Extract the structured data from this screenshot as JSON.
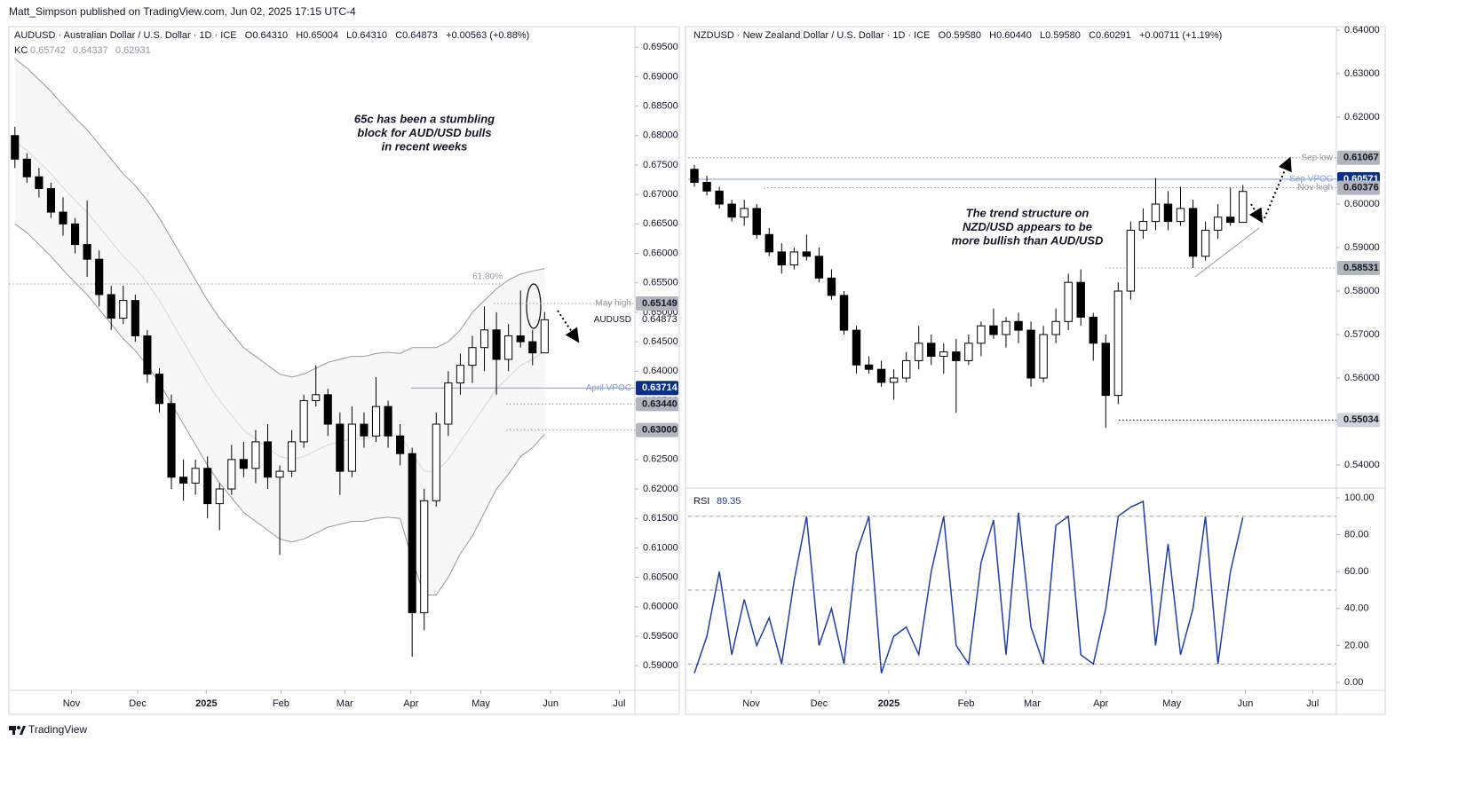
{
  "header": "Matt_Simpson published on TradingView.com, Jun 02, 2025 17:15 UTC-4",
  "footer": "TradingView",
  "chart_data": [
    {
      "type": "candlestick",
      "title": "AUDUSD · Australian Dollar / U.S. Dollar · 1D · ICE   O0.64310   H0.65004   L0.64310   C0.64873   +0.00563 (+0.88%)",
      "symbol": "AUDUSD",
      "up_color": "#ffffff",
      "down_color": "#000000",
      "wick_color": "#000000",
      "grid": false,
      "xlim": [
        -0.5,
        51.5
      ],
      "xticks": [
        {
          "value": 4.7,
          "label": "Nov"
        },
        {
          "value": 10.2,
          "label": "Dec"
        },
        {
          "value": 15.9,
          "label": "2025"
        },
        {
          "value": 22.1,
          "label": "Feb"
        },
        {
          "value": 27.4,
          "label": "Mar"
        },
        {
          "value": 32.9,
          "label": "Apr"
        },
        {
          "value": 38.7,
          "label": "May"
        },
        {
          "value": 44.5,
          "label": "Jun"
        },
        {
          "value": 50.2,
          "label": "Jul"
        }
      ],
      "ylim": [
        0.5858,
        0.6985
      ],
      "yticks": [
        {
          "value": 0.59,
          "label": "0.59000"
        },
        {
          "value": 0.595,
          "label": "0.59500"
        },
        {
          "value": 0.6,
          "label": "0.60000"
        },
        {
          "value": 0.605,
          "label": "0.60500"
        },
        {
          "value": 0.61,
          "label": "0.61000"
        },
        {
          "value": 0.615,
          "label": "0.61500"
        },
        {
          "value": 0.62,
          "label": "0.62000"
        },
        {
          "value": 0.625,
          "label": "0.62500"
        },
        {
          "value": 0.63,
          "label": "0.63000"
        },
        {
          "value": 0.635,
          "label": "0.63500"
        },
        {
          "value": 0.64,
          "label": "0.64000"
        },
        {
          "value": 0.645,
          "label": "0.64500"
        },
        {
          "value": 0.65,
          "label": "0.65000"
        },
        {
          "value": 0.655,
          "label": "0.65500"
        },
        {
          "value": 0.66,
          "label": "0.66000"
        },
        {
          "value": 0.665,
          "label": "0.66500"
        },
        {
          "value": 0.67,
          "label": "0.67000"
        },
        {
          "value": 0.675,
          "label": "0.67500"
        },
        {
          "value": 0.68,
          "label": "0.68000"
        },
        {
          "value": 0.685,
          "label": "0.68500"
        },
        {
          "value": 0.69,
          "label": "0.69000"
        },
        {
          "value": 0.695,
          "label": "0.69500"
        }
      ],
      "open": [
        0.68,
        0.676,
        0.673,
        0.671,
        0.667,
        0.665,
        0.6615,
        0.659,
        0.653,
        0.649,
        0.652,
        0.646,
        0.6395,
        0.6345,
        0.622,
        0.621,
        0.6235,
        0.6175,
        0.62,
        0.625,
        0.6235,
        0.628,
        0.622,
        0.623,
        0.628,
        0.635,
        0.636,
        0.631,
        0.623,
        0.631,
        0.629,
        0.634,
        0.629,
        0.626,
        0.599,
        0.618,
        0.631,
        0.638,
        0.641,
        0.644,
        0.647,
        0.642,
        0.646,
        0.645,
        0.6431
      ],
      "high": [
        0.6815,
        0.677,
        0.6745,
        0.672,
        0.6695,
        0.666,
        0.669,
        0.6605,
        0.6545,
        0.6545,
        0.653,
        0.647,
        0.6405,
        0.636,
        0.625,
        0.625,
        0.6255,
        0.621,
        0.6275,
        0.628,
        0.63,
        0.631,
        0.624,
        0.63,
        0.636,
        0.641,
        0.637,
        0.633,
        0.634,
        0.633,
        0.639,
        0.635,
        0.631,
        0.627,
        0.62,
        0.633,
        0.64,
        0.643,
        0.646,
        0.651,
        0.65,
        0.648,
        0.6537,
        0.647,
        0.65004
      ],
      "low": [
        0.6745,
        0.672,
        0.6695,
        0.666,
        0.663,
        0.66,
        0.656,
        0.651,
        0.647,
        0.648,
        0.645,
        0.638,
        0.633,
        0.62,
        0.618,
        0.619,
        0.615,
        0.613,
        0.619,
        0.622,
        0.621,
        0.62,
        0.6088,
        0.622,
        0.627,
        0.634,
        0.629,
        0.619,
        0.622,
        0.627,
        0.628,
        0.627,
        0.624,
        0.5915,
        0.596,
        0.617,
        0.629,
        0.636,
        0.638,
        0.64,
        0.636,
        0.64,
        0.644,
        0.641,
        0.6431
      ],
      "close": [
        0.676,
        0.673,
        0.671,
        0.667,
        0.665,
        0.6615,
        0.659,
        0.653,
        0.649,
        0.652,
        0.646,
        0.6395,
        0.6345,
        0.622,
        0.621,
        0.6235,
        0.6175,
        0.62,
        0.625,
        0.6235,
        0.628,
        0.622,
        0.623,
        0.628,
        0.635,
        0.636,
        0.631,
        0.623,
        0.631,
        0.629,
        0.634,
        0.629,
        0.626,
        0.599,
        0.618,
        0.631,
        0.638,
        0.641,
        0.644,
        0.647,
        0.642,
        0.646,
        0.645,
        0.6431,
        0.64873
      ],
      "kc": {
        "name": "KC",
        "color": "#9598a1",
        "upper": [
          0.693,
          0.6915,
          0.6895,
          0.6875,
          0.6852,
          0.683,
          0.681,
          0.6785,
          0.676,
          0.6735,
          0.6715,
          0.669,
          0.666,
          0.6625,
          0.659,
          0.6555,
          0.652,
          0.649,
          0.6465,
          0.644,
          0.6425,
          0.641,
          0.6395,
          0.639,
          0.6395,
          0.6405,
          0.6415,
          0.642,
          0.6425,
          0.6425,
          0.643,
          0.6432,
          0.643,
          0.644,
          0.644,
          0.644,
          0.645,
          0.647,
          0.65,
          0.652,
          0.654,
          0.6555,
          0.6565,
          0.657,
          0.65742
        ],
        "middle": [
          0.679,
          0.6775,
          0.6755,
          0.6735,
          0.6712,
          0.669,
          0.667,
          0.6645,
          0.662,
          0.6595,
          0.6575,
          0.655,
          0.652,
          0.6485,
          0.645,
          0.6415,
          0.638,
          0.635,
          0.6325,
          0.63,
          0.6285,
          0.627,
          0.6255,
          0.625,
          0.6255,
          0.6265,
          0.6275,
          0.628,
          0.6285,
          0.6285,
          0.629,
          0.6292,
          0.629,
          0.626,
          0.623,
          0.623,
          0.625,
          0.628,
          0.631,
          0.634,
          0.637,
          0.639,
          0.641,
          0.642,
          0.64337
        ],
        "lower": [
          0.665,
          0.6635,
          0.6615,
          0.6595,
          0.6572,
          0.655,
          0.653,
          0.6505,
          0.648,
          0.6455,
          0.6435,
          0.641,
          0.638,
          0.6345,
          0.631,
          0.6275,
          0.624,
          0.621,
          0.6185,
          0.616,
          0.6145,
          0.613,
          0.6115,
          0.611,
          0.6115,
          0.6125,
          0.6135,
          0.614,
          0.6145,
          0.6145,
          0.615,
          0.6152,
          0.615,
          0.608,
          0.602,
          0.602,
          0.605,
          0.609,
          0.612,
          0.616,
          0.62,
          0.6225,
          0.6255,
          0.627,
          0.62931
        ]
      },
      "levels": [
        {
          "name": "61.80%",
          "value": 0.6548,
          "color": "#9598a1",
          "boxed": false
        },
        {
          "name": "May high",
          "value": 0.65149,
          "color": "#9598a1",
          "boxed": true
        },
        {
          "name": "April VPOC",
          "value": 0.63714,
          "color": "#7f9be0",
          "boxed": true,
          "box_color": "#0c3180"
        },
        {
          "value": 0.6344,
          "label": "0.63440",
          "color": "#9598a1",
          "boxed": true
        },
        {
          "value": 0.63,
          "label": "0.63000",
          "color": "#9598a1",
          "boxed": true
        }
      ],
      "annotation": [
        "65c has been a stumbling",
        "block for AUD/USD bulls",
        "in recent weeks"
      ]
    },
    {
      "type": "candlestick",
      "title": "NZDUSD · New Zealand Dollar / U.S. Dollar · 1D · ICE   O0.59580   H0.60440   L0.59580   C0.60291   +0.00711 (+1.19%)",
      "up_color": "#ffffff",
      "down_color": "#000000",
      "wick_color": "#000000",
      "grid": false,
      "xlim": [
        -0.5,
        51.5
      ],
      "xticks": [
        {
          "value": 4.56,
          "label": "Nov"
        },
        {
          "value": 10.0,
          "label": "Dec"
        },
        {
          "value": 15.6,
          "label": "2025"
        },
        {
          "value": 21.8,
          "label": "Feb"
        },
        {
          "value": 27.1,
          "label": "Mar"
        },
        {
          "value": 32.6,
          "label": "Apr"
        },
        {
          "value": 38.3,
          "label": "May"
        },
        {
          "value": 44.2,
          "label": "Jun"
        },
        {
          "value": 49.6,
          "label": "Jul"
        }
      ],
      "ylim": [
        0.5351,
        0.64082
      ],
      "yticks": [
        {
          "value": 0.54,
          "label": "0.54000"
        },
        {
          "value": 0.55,
          "label": "0.55000"
        },
        {
          "value": 0.56,
          "label": "0.56000"
        },
        {
          "value": 0.57,
          "label": "0.57000"
        },
        {
          "value": 0.58,
          "label": "0.58000"
        },
        {
          "value": 0.59,
          "label": "0.59000"
        },
        {
          "value": 0.6,
          "label": "0.60000"
        },
        {
          "value": 0.61,
          "label": "0.61000"
        },
        {
          "value": 0.62,
          "label": "0.62000"
        },
        {
          "value": 0.63,
          "label": "0.63000"
        },
        {
          "value": 0.64,
          "label": "0.64000"
        }
      ],
      "open": [
        0.608,
        0.605,
        0.603,
        0.6,
        0.597,
        0.599,
        0.593,
        0.589,
        0.586,
        0.589,
        0.588,
        0.583,
        0.579,
        0.571,
        0.563,
        0.562,
        0.559,
        0.56,
        0.564,
        0.568,
        0.565,
        0.566,
        0.564,
        0.568,
        0.572,
        0.57,
        0.573,
        0.571,
        0.56,
        0.57,
        0.573,
        0.582,
        0.574,
        0.568,
        0.556,
        0.58,
        0.594,
        0.596,
        0.6,
        0.596,
        0.599,
        0.588,
        0.594,
        0.597,
        0.5958
      ],
      "high": [
        0.609,
        0.6065,
        0.604,
        0.601,
        0.601,
        0.6,
        0.5945,
        0.591,
        0.59,
        0.593,
        0.59,
        0.585,
        0.58,
        0.572,
        0.565,
        0.564,
        0.562,
        0.566,
        0.572,
        0.57,
        0.568,
        0.569,
        0.57,
        0.573,
        0.576,
        0.574,
        0.575,
        0.573,
        0.572,
        0.576,
        0.584,
        0.585,
        0.575,
        0.57,
        0.582,
        0.596,
        0.599,
        0.606,
        0.603,
        0.604,
        0.601,
        0.596,
        0.6,
        0.6038,
        0.6044
      ],
      "low": [
        0.604,
        0.602,
        0.599,
        0.596,
        0.595,
        0.592,
        0.588,
        0.584,
        0.585,
        0.587,
        0.582,
        0.578,
        0.57,
        0.561,
        0.561,
        0.558,
        0.555,
        0.559,
        0.562,
        0.563,
        0.561,
        0.552,
        0.563,
        0.565,
        0.569,
        0.567,
        0.568,
        0.558,
        0.559,
        0.568,
        0.571,
        0.572,
        0.564,
        0.5485,
        0.554,
        0.578,
        0.592,
        0.594,
        0.594,
        0.595,
        0.5853,
        0.587,
        0.592,
        0.595,
        0.5958
      ],
      "close": [
        0.605,
        0.603,
        0.6,
        0.597,
        0.599,
        0.593,
        0.589,
        0.586,
        0.589,
        0.588,
        0.583,
        0.579,
        0.571,
        0.563,
        0.562,
        0.559,
        0.56,
        0.564,
        0.568,
        0.565,
        0.566,
        0.564,
        0.568,
        0.572,
        0.57,
        0.573,
        0.571,
        0.56,
        0.57,
        0.573,
        0.582,
        0.574,
        0.568,
        0.556,
        0.58,
        0.594,
        0.596,
        0.6,
        0.596,
        0.599,
        0.588,
        0.594,
        0.597,
        0.5958,
        0.60291
      ],
      "levels": [
        {
          "name": "Sep low",
          "value": 0.61067,
          "color": "#9598a1",
          "boxed": true
        },
        {
          "name": "Sep VPOC",
          "value": 0.60571,
          "color": "#7f9be0",
          "boxed": true,
          "box_color": "#0c3180"
        },
        {
          "name": "Nov high",
          "value": 0.60376,
          "color": "#9598a1",
          "boxed": true
        },
        {
          "value": 0.58531,
          "color": "#9598a1",
          "boxed": true
        },
        {
          "value": 0.55034,
          "color": "#000000",
          "boxed": true
        }
      ],
      "annotation": [
        "The trend structure on",
        "NZD/USD appears to be",
        "more bullish than AUD/USD"
      ],
      "rsi": {
        "name": "RSI",
        "color": "#1f3fa3",
        "values": [
          5,
          25,
          60,
          15,
          45,
          20,
          35,
          10,
          55,
          90,
          20,
          40,
          10,
          70,
          90,
          5,
          25,
          30,
          15,
          60,
          90,
          20,
          10,
          65,
          88,
          15,
          92,
          30,
          10,
          85,
          90,
          15,
          10,
          40,
          90,
          95,
          98,
          20,
          75,
          15,
          40,
          90,
          10,
          60,
          89.35
        ],
        "ylim": [
          -4.33,
          104.33
        ],
        "yticks": [
          {
            "value": 0,
            "label": "0.00"
          },
          {
            "value": 20,
            "label": "20.00"
          },
          {
            "value": 40,
            "label": "40.00"
          },
          {
            "value": 60,
            "label": "60.00"
          },
          {
            "value": 80,
            "label": "80.00"
          },
          {
            "value": 100,
            "label": "100.00"
          }
        ],
        "levels": [
          10,
          50,
          90
        ]
      }
    }
  ]
}
